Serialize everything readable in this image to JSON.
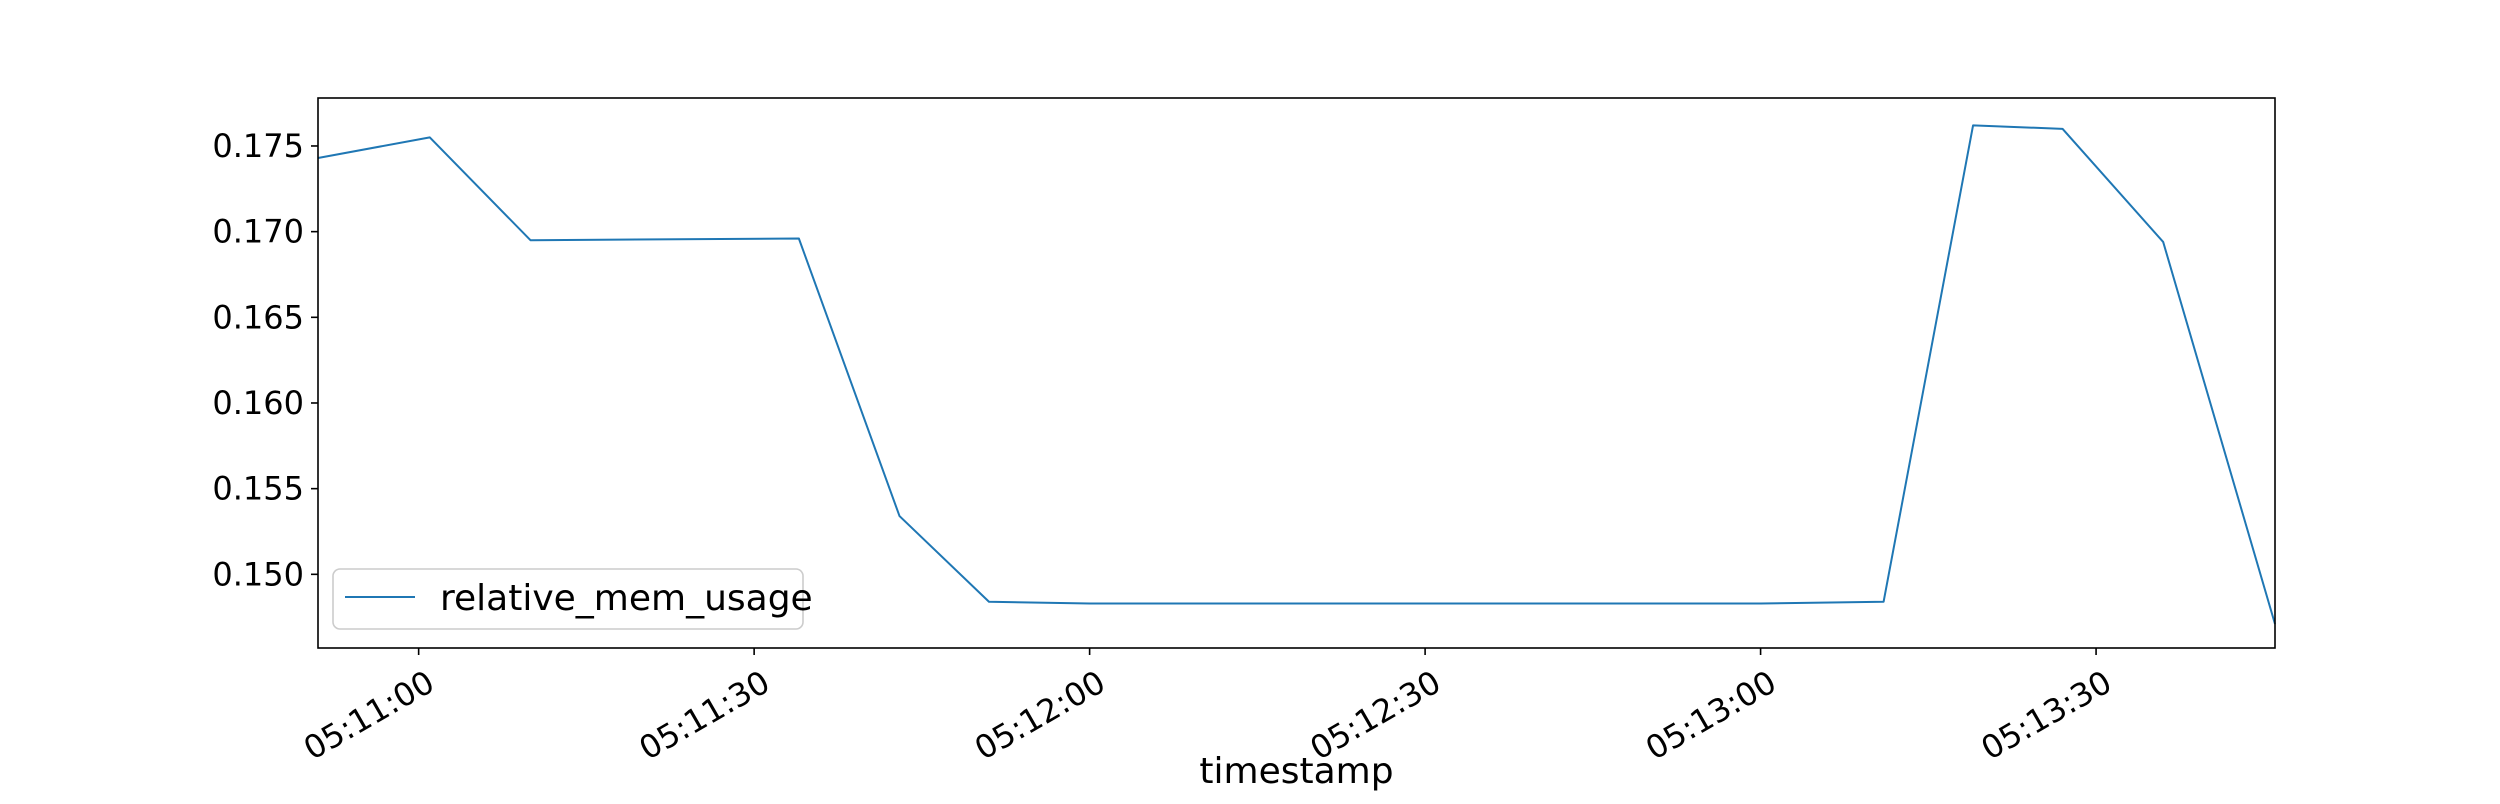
{
  "chart_data": {
    "type": "line",
    "title": "",
    "xlabel": "timestamp",
    "ylabel": "",
    "x_tick_labels": [
      "05:11:00",
      "05:11:30",
      "05:12:00",
      "05:12:30",
      "05:13:00",
      "05:13:30"
    ],
    "y_tick_labels": [
      "0.150",
      "0.155",
      "0.160",
      "0.165",
      "0.170",
      "0.175"
    ],
    "y_ticks": [
      0.15,
      0.155,
      0.16,
      0.165,
      0.17,
      0.175
    ],
    "xlim": [
      "05:10:51",
      "05:13:46"
    ],
    "ylim": [
      0.1457,
      0.1778
    ],
    "grid": false,
    "legend_position": "lower-left",
    "series": [
      {
        "name": "relative_mem_usage",
        "color": "#1f77b4",
        "points": [
          {
            "x": "05:10:51",
            "y": 0.1743
          },
          {
            "x": "05:11:01",
            "y": 0.1755
          },
          {
            "x": "05:11:10",
            "y": 0.1695
          },
          {
            "x": "05:11:34",
            "y": 0.1696
          },
          {
            "x": "05:11:43",
            "y": 0.1534
          },
          {
            "x": "05:11:51",
            "y": 0.1484
          },
          {
            "x": "05:12:00",
            "y": 0.1483
          },
          {
            "x": "05:12:30",
            "y": 0.1483
          },
          {
            "x": "05:13:00",
            "y": 0.1483
          },
          {
            "x": "05:13:11",
            "y": 0.1484
          },
          {
            "x": "05:13:19",
            "y": 0.1762
          },
          {
            "x": "05:13:27",
            "y": 0.176
          },
          {
            "x": "05:13:36",
            "y": 0.1694
          },
          {
            "x": "05:13:46",
            "y": 0.1471
          }
        ]
      }
    ]
  }
}
